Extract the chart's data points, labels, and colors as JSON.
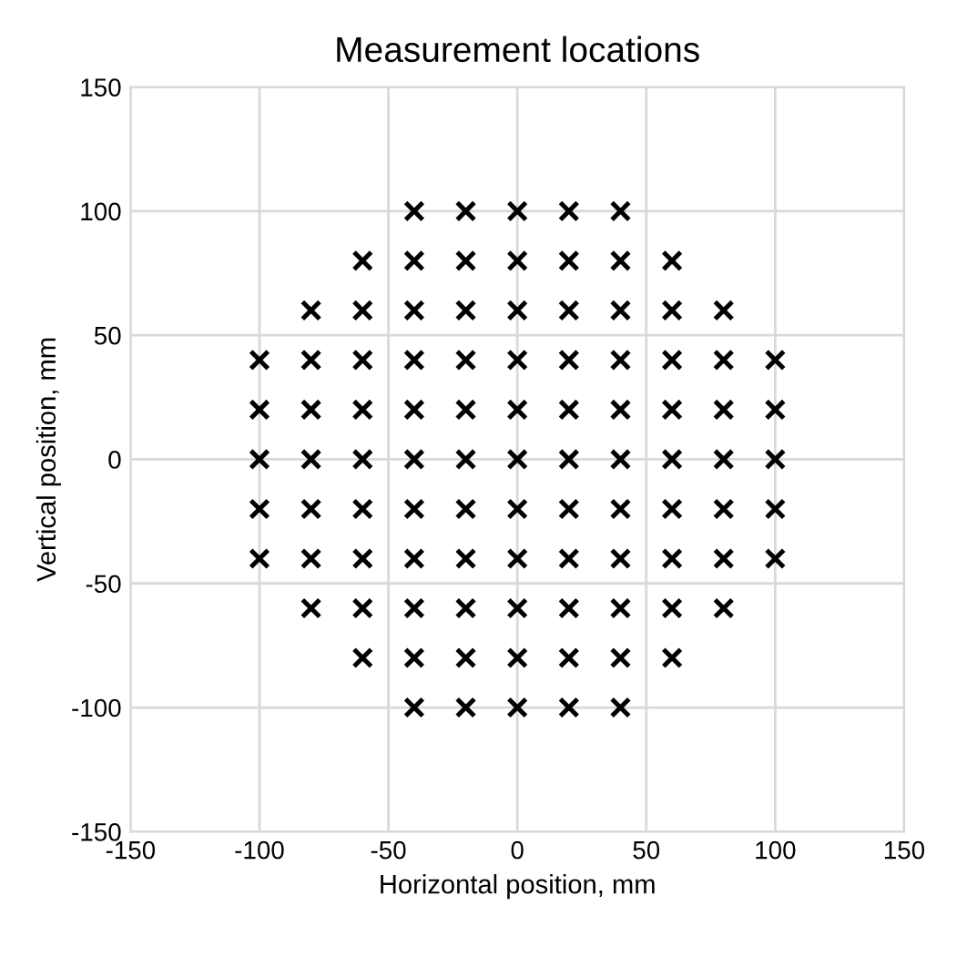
{
  "chart_data": {
    "type": "scatter",
    "title": "Measurement locations",
    "xlabel": "Horizontal position, mm",
    "ylabel": "Vertical position, mm",
    "x": [
      -40,
      -20,
      0,
      20,
      40,
      -60,
      -40,
      -20,
      0,
      20,
      40,
      60,
      -80,
      -60,
      -40,
      -20,
      0,
      20,
      40,
      60,
      80,
      -100,
      -80,
      -60,
      -40,
      -20,
      0,
      20,
      40,
      60,
      80,
      100,
      -100,
      -80,
      -60,
      -40,
      -20,
      0,
      20,
      40,
      60,
      80,
      100,
      -100,
      -80,
      -60,
      -40,
      -20,
      0,
      20,
      40,
      60,
      80,
      100,
      -100,
      -80,
      -60,
      -40,
      -20,
      0,
      20,
      40,
      60,
      80,
      100,
      -100,
      -80,
      -60,
      -40,
      -20,
      0,
      20,
      40,
      60,
      80,
      100,
      -80,
      -60,
      -40,
      -20,
      0,
      20,
      40,
      60,
      80,
      -60,
      -40,
      -20,
      0,
      20,
      40,
      60,
      -40,
      -20,
      0,
      20,
      40
    ],
    "values": [
      100,
      100,
      100,
      100,
      100,
      80,
      80,
      80,
      80,
      80,
      80,
      80,
      60,
      60,
      60,
      60,
      60,
      60,
      60,
      60,
      60,
      40,
      40,
      40,
      40,
      40,
      40,
      40,
      40,
      40,
      40,
      40,
      20,
      20,
      20,
      20,
      20,
      20,
      20,
      20,
      20,
      20,
      20,
      0,
      0,
      0,
      0,
      0,
      0,
      0,
      0,
      0,
      0,
      0,
      -20,
      -20,
      -20,
      -20,
      -20,
      -20,
      -20,
      -20,
      -20,
      -20,
      -20,
      -40,
      -40,
      -40,
      -40,
      -40,
      -40,
      -40,
      -40,
      -40,
      -40,
      -40,
      -60,
      -60,
      -60,
      -60,
      -60,
      -60,
      -60,
      -60,
      -60,
      -80,
      -80,
      -80,
      -80,
      -80,
      -80,
      -80,
      -100,
      -100,
      -100,
      -100,
      -100
    ],
    "color": "#000000",
    "marker": "cross",
    "xlim": [
      -150,
      150
    ],
    "ylim": [
      -150,
      150
    ],
    "xticks": [
      -150,
      -100,
      -50,
      0,
      50,
      100,
      150
    ],
    "yticks": [
      -150,
      -100,
      -50,
      0,
      50,
      100,
      150
    ],
    "grid": true
  }
}
